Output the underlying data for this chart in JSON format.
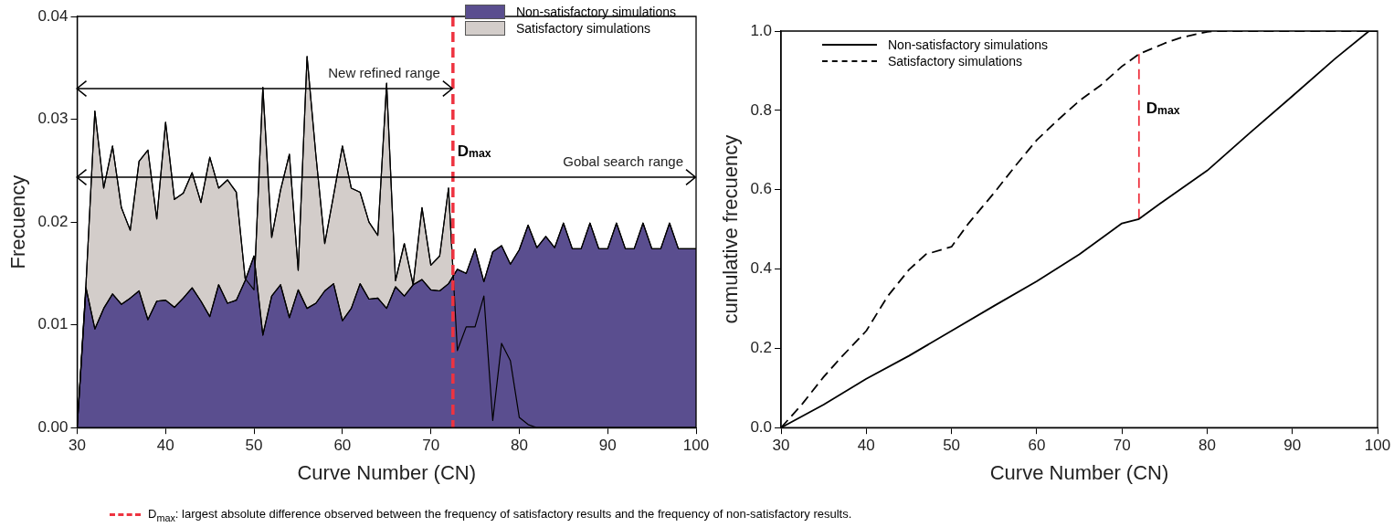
{
  "chart_data": [
    {
      "type": "area",
      "x": [
        30,
        31,
        32,
        33,
        34,
        35,
        36,
        37,
        38,
        39,
        40,
        41,
        42,
        43,
        44,
        45,
        46,
        47,
        48,
        49,
        50,
        51,
        52,
        53,
        54,
        55,
        56,
        57,
        58,
        59,
        60,
        61,
        62,
        63,
        64,
        65,
        66,
        67,
        68,
        69,
        70,
        71,
        72,
        73,
        74,
        75,
        76,
        77,
        78,
        79,
        80,
        81,
        82,
        83,
        84,
        85,
        86,
        87,
        88,
        89,
        90,
        91,
        92,
        93,
        94,
        95,
        96,
        97,
        98,
        99,
        100
      ],
      "series": [
        {
          "name": "Non-satisfactory simulations",
          "color": "#5a4e8f",
          "values": [
            0,
            0.0136,
            0.0096,
            0.0116,
            0.013,
            0.012,
            0.0126,
            0.0133,
            0.0105,
            0.0123,
            0.0124,
            0.0117,
            0.0126,
            0.0136,
            0.0123,
            0.0108,
            0.0139,
            0.0121,
            0.0124,
            0.0143,
            0.0167,
            0.009,
            0.0128,
            0.0139,
            0.0107,
            0.0134,
            0.0116,
            0.0121,
            0.0133,
            0.014,
            0.0104,
            0.0116,
            0.014,
            0.0125,
            0.0126,
            0.0116,
            0.0137,
            0.0128,
            0.0139,
            0.0144,
            0.0134,
            0.0133,
            0.014,
            0.0154,
            0.015,
            0.0174,
            0.0142,
            0.0171,
            0.0177,
            0.0159,
            0.0173,
            0.0197,
            0.0175,
            0.0186,
            0.0175,
            0.0199,
            0.0174,
            0.0174,
            0.0199,
            0.0174,
            0.0174,
            0.0199,
            0.0174,
            0.0174,
            0.0199,
            0.0174,
            0.0174,
            0.0199,
            0.0174,
            0.0174,
            0.0174
          ]
        },
        {
          "name": "Satisfactory simulations",
          "color": "#d3cdca",
          "values": [
            0,
            0.014,
            0.0308,
            0.0233,
            0.0274,
            0.0214,
            0.0192,
            0.0259,
            0.027,
            0.0203,
            0.0297,
            0.0222,
            0.0228,
            0.0248,
            0.0219,
            0.0263,
            0.0233,
            0.0241,
            0.0229,
            0.0145,
            0.0134,
            0.0331,
            0.0185,
            0.0231,
            0.0266,
            0.0153,
            0.0361,
            0.0265,
            0.0179,
            0.0226,
            0.0274,
            0.0233,
            0.0229,
            0.02,
            0.0187,
            0.0335,
            0.0143,
            0.0179,
            0.0139,
            0.0214,
            0.0158,
            0.0167,
            0.0233,
            0.0075,
            0.0098,
            0.0098,
            0.0128,
            0.0007,
            0.0082,
            0.0065,
            0.001,
            0.0003,
            0,
            0,
            0,
            0,
            0,
            0,
            0,
            0,
            0,
            0,
            0,
            0,
            0,
            0,
            0,
            0,
            0,
            0,
            0
          ]
        }
      ],
      "xlabel": "Curve Number (CN)",
      "ylabel": "Frecuency",
      "xlim": [
        30,
        100
      ],
      "ylim": [
        0,
        0.04
      ],
      "xticks": [
        30,
        40,
        50,
        60,
        70,
        80,
        90,
        100
      ],
      "yticks": [
        {
          "value": 0,
          "label": "0.00"
        },
        {
          "value": 0.01,
          "label": "0.01"
        },
        {
          "value": 0.02,
          "label": "0.02"
        },
        {
          "value": 0.03,
          "label": "0.03"
        },
        {
          "value": 0.04,
          "label": "0.04"
        }
      ],
      "legend": "top right",
      "ref_lines": [
        {
          "axis": "x",
          "value": 72.5,
          "label": "D$_{max}$",
          "color": "#ee3340",
          "line_style": "dashed"
        }
      ],
      "annotations": [
        "New refined range",
        "Gobal search range",
        "D$_{max}$: largest absolute difference observed between the frequency of satisfactory results and the frequency of non-satisfactory results."
      ]
    },
    {
      "type": "line",
      "xlabel": "Curve Number (CN)",
      "ylabel": "cumulative frecuency",
      "xlim": [
        30,
        100
      ],
      "ylim": [
        0,
        1
      ],
      "xticks": [
        30,
        40,
        50,
        60,
        70,
        80,
        90,
        100
      ],
      "yticks": [
        {
          "value": 0,
          "label": "0.0"
        },
        {
          "value": 0.2,
          "label": "0.2"
        },
        {
          "value": 0.4,
          "label": "0.4"
        },
        {
          "value": 0.6,
          "label": "0.6"
        },
        {
          "value": 0.8,
          "label": "0.8"
        },
        {
          "value": 1,
          "label": "1.0"
        }
      ],
      "legend": "top left",
      "series": [
        {
          "name": "Non-satisfactory simulations",
          "color": "#000000",
          "line_style": "solid",
          "x": [
            30,
            35,
            40,
            45,
            50,
            55,
            60,
            65,
            70,
            72,
            75,
            80,
            85,
            90,
            95,
            99,
            100
          ],
          "values": [
            0,
            0.058,
            0.123,
            0.181,
            0.244,
            0.307,
            0.369,
            0.437,
            0.515,
            0.526,
            0.573,
            0.648,
            0.743,
            0.836,
            0.93,
            1.0,
            1.0
          ]
        },
        {
          "name": "Satisfactory simulations",
          "color": "#000000",
          "line_style": "dashed",
          "x": [
            30,
            32.5,
            35,
            37,
            40,
            42.5,
            45,
            47,
            50,
            52,
            55,
            57.5,
            60,
            62.5,
            65,
            67.5,
            70,
            72,
            75,
            77,
            80,
            81,
            100
          ],
          "values": [
            0,
            0.06,
            0.128,
            0.176,
            0.244,
            0.331,
            0.398,
            0.437,
            0.456,
            0.515,
            0.592,
            0.66,
            0.725,
            0.776,
            0.824,
            0.863,
            0.911,
            0.942,
            0.969,
            0.984,
            0.998,
            1.0,
            1.0
          ]
        },
        {
          "type": "line",
          "name": "D$_{max}$",
          "color": "#ee3340",
          "line_style": "dashed",
          "x": [
            72,
            72
          ],
          "values": [
            0.526,
            0.942
          ]
        }
      ]
    }
  ]
}
